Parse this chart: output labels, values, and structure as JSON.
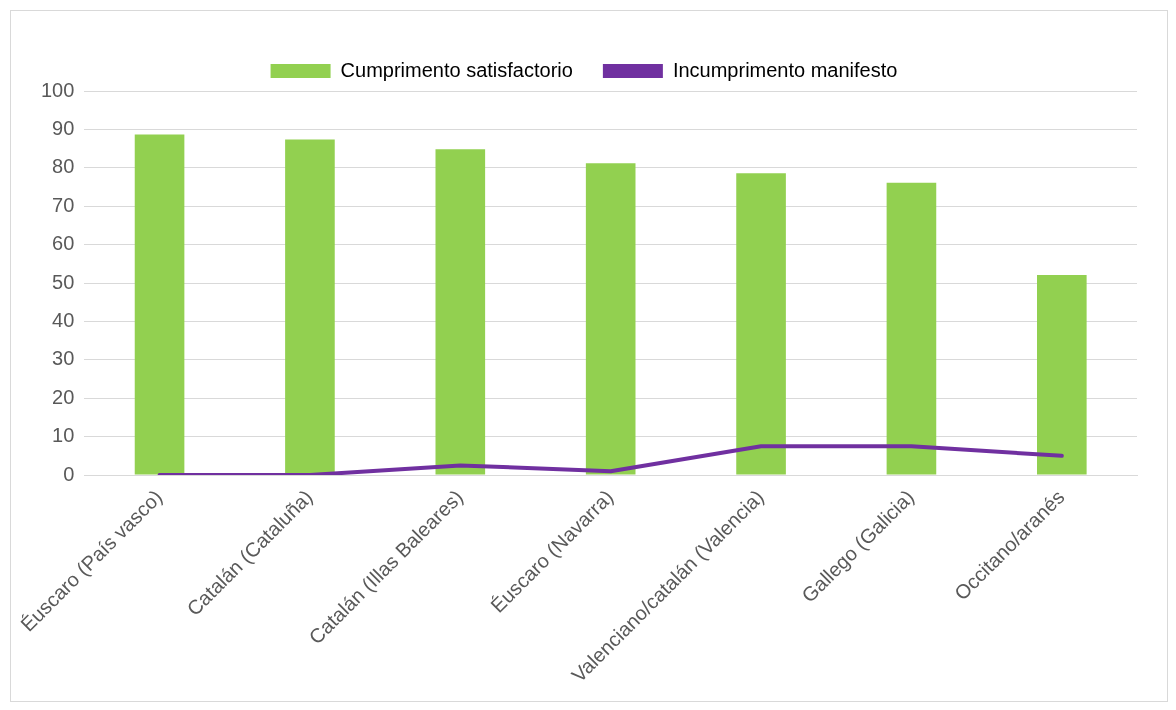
{
  "chart_data": {
    "type": "bar",
    "categories": [
      "Éuscaro (País vasco)",
      "Catalán (Cataluña)",
      "Catalán (Illas Baleares)",
      "Éuscaro (Navarra)",
      "Valenciano/catalán (Valencia)",
      "Gallego (Galicia)",
      "Occitano/aranés"
    ],
    "series": [
      {
        "name": "Cumprimento satisfactorio",
        "color": "#92d050",
        "values": [
          88.7,
          87.4,
          84.8,
          81.2,
          78.6,
          76.1,
          52.1
        ]
      },
      {
        "name": "Incumprimento manifesto",
        "type": "line",
        "color": "#7030a0",
        "values": [
          0,
          0,
          2.5,
          1,
          7.5,
          7.5,
          5
        ]
      }
    ],
    "ylim": [
      0,
      100
    ],
    "yticks": [
      0,
      10,
      20,
      30,
      40,
      50,
      60,
      70,
      80,
      90,
      100
    ],
    "grid": "y",
    "legend": "top",
    "marker": "none"
  }
}
